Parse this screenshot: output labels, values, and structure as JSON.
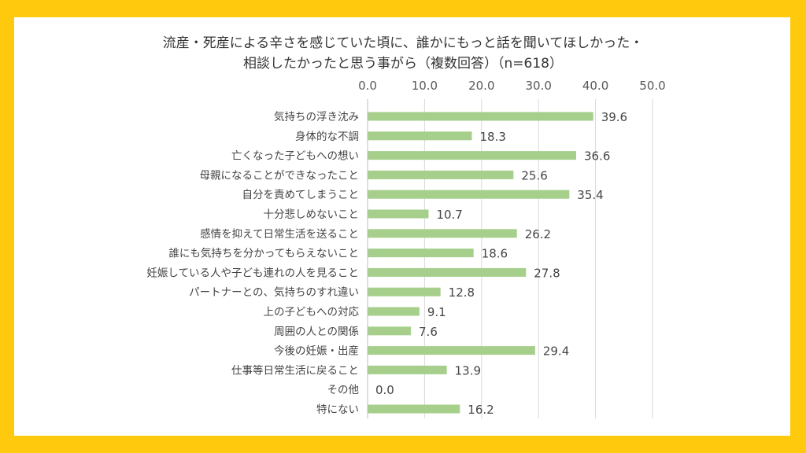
{
  "colors": {
    "frame": "#FFC90E",
    "bar": "#A6CF8B",
    "grid": "#D9D9D9",
    "text": "#444444",
    "tick": "#595959"
  },
  "chart_data": {
    "type": "bar",
    "orientation": "horizontal",
    "title_lines": [
      "流産・死産による辛さを感じていた頃に、誰かにもっと話を聞いてほしかった・",
      "相談したかったと思う事がら（複数回答）（n=618）"
    ],
    "categories": [
      "気持ちの浮き沈み",
      "身体的な不調",
      "亡くなった子どもへの想い",
      "母親になることができなったこと",
      "自分を責めてしまうこと",
      "十分悲しめないこと",
      "感情を抑えて日常生活を送ること",
      "誰にも気持ちを分かってもらえないこと",
      "妊娠している人や子ども連れの人を見ること",
      "パートナーとの、気持ちのすれ違い",
      "上の子どもへの対応",
      "周囲の人との関係",
      "今後の妊娠・出産",
      "仕事等日常生活に戻ること",
      "その他",
      "特にない"
    ],
    "values": [
      39.6,
      18.3,
      36.6,
      25.6,
      35.4,
      10.7,
      26.2,
      18.6,
      27.8,
      12.8,
      9.1,
      7.6,
      29.4,
      13.9,
      0.0,
      16.2
    ],
    "xlim": [
      0,
      50
    ],
    "xticks": [
      0,
      10,
      20,
      30,
      40,
      50
    ],
    "xtick_labels": [
      "0.0",
      "10.0",
      "20.0",
      "30.0",
      "40.0",
      "50.0"
    ],
    "xaxis_position": "top",
    "grid": true,
    "legend": "none"
  }
}
